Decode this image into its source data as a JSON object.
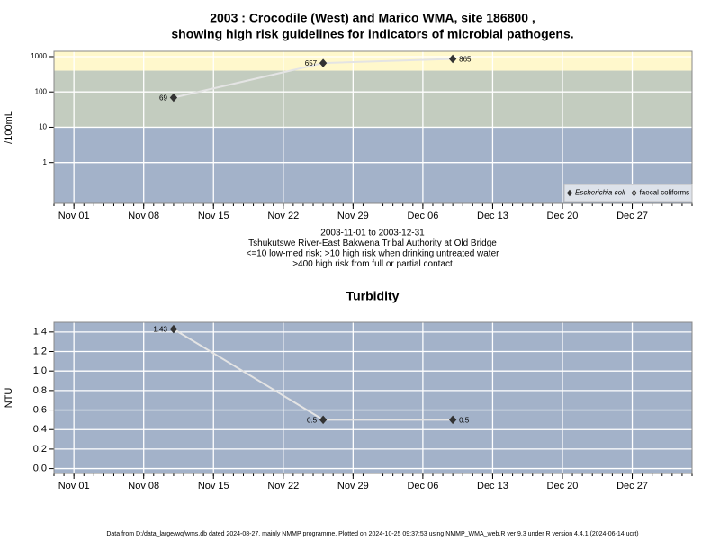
{
  "title": "2003 : Crocodile (West) and Marico WMA, site 186800 ,",
  "subtitle": "showing high risk guidelines for indicators of microbial pathogens.",
  "footer": "Data from D:/data_large/wq/wms.db dated 2024-08-27, mainly NMMP programme. Plotted on 2024-10-25 09:37:53 using NMMP_WMA_web.R ver 9.3 under R version 4.4.1 (2024-06-14 ucrt)",
  "chart_data": [
    {
      "type": "line",
      "ylabel": "/100mL",
      "log_scale": true,
      "grid": true,
      "background": "#a3b2c9",
      "bands": [
        {
          "value": 10,
          "color": "#c3ccbf"
        },
        {
          "value": 400,
          "color": "#fff8cc"
        }
      ],
      "xlim": [
        "2003-10-30",
        "2004-01-02"
      ],
      "xticks": [
        {
          "value": "2003-11-01",
          "label": "Nov 01"
        },
        {
          "value": "2003-11-08",
          "label": "Nov 08"
        },
        {
          "value": "2003-11-15",
          "label": "Nov 15"
        },
        {
          "value": "2003-11-22",
          "label": "Nov 22"
        },
        {
          "value": "2003-11-29",
          "label": "Nov 29"
        },
        {
          "value": "2003-12-06",
          "label": "Dec 06"
        },
        {
          "value": "2003-12-13",
          "label": "Dec 13"
        },
        {
          "value": "2003-12-20",
          "label": "Dec 20"
        },
        {
          "value": "2003-12-27",
          "label": "Dec 27"
        }
      ],
      "ylim": [
        0.07,
        1420
      ],
      "yticks": [
        1,
        10,
        100,
        1000
      ],
      "x": [
        "2003-11-11",
        "2003-11-26",
        "2003-12-09"
      ],
      "series": [
        {
          "name": "Escherichia coli",
          "color": "#333333",
          "marker": "filled",
          "values": [
            69,
            657,
            865
          ]
        },
        {
          "name": "faecal coliforms",
          "color": "#333333",
          "marker": "open",
          "values": [
            null,
            null,
            null
          ]
        }
      ],
      "legend": "bottom-right",
      "notes": [
        "2003-11-01 to 2003-12-31",
        "Tshukutswe River-East Bakwena Tribal Authority at Old Bridge",
        "<=10 low-med risk; >10 high risk when drinking untreated water",
        ">400 high risk from full or partial contact"
      ]
    },
    {
      "type": "line",
      "title": "Turbidity",
      "ylabel": "NTU",
      "log_scale": false,
      "grid": true,
      "background": "#a3b2c9",
      "xlim": [
        "2003-10-30",
        "2004-01-02"
      ],
      "xticks": [
        {
          "value": "2003-11-01",
          "label": "Nov 01"
        },
        {
          "value": "2003-11-08",
          "label": "Nov 08"
        },
        {
          "value": "2003-11-15",
          "label": "Nov 15"
        },
        {
          "value": "2003-11-22",
          "label": "Nov 22"
        },
        {
          "value": "2003-11-29",
          "label": "Nov 29"
        },
        {
          "value": "2003-12-06",
          "label": "Dec 06"
        },
        {
          "value": "2003-12-13",
          "label": "Dec 13"
        },
        {
          "value": "2003-12-20",
          "label": "Dec 20"
        },
        {
          "value": "2003-12-27",
          "label": "Dec 27"
        }
      ],
      "ylim": [
        -0.05,
        1.5
      ],
      "yticks": [
        {
          "value": 0,
          "label": "0.0"
        },
        0.2,
        0.4,
        0.6,
        0.8,
        {
          "value": 1,
          "label": "1.0"
        },
        1.2,
        1.4
      ],
      "x": [
        "2003-11-11",
        "2003-11-26",
        "2003-12-09"
      ],
      "series": [
        {
          "name": "Turbidity",
          "color": "#333333",
          "marker": "filled",
          "values": [
            1.43,
            0.5,
            0.5
          ]
        }
      ]
    }
  ]
}
